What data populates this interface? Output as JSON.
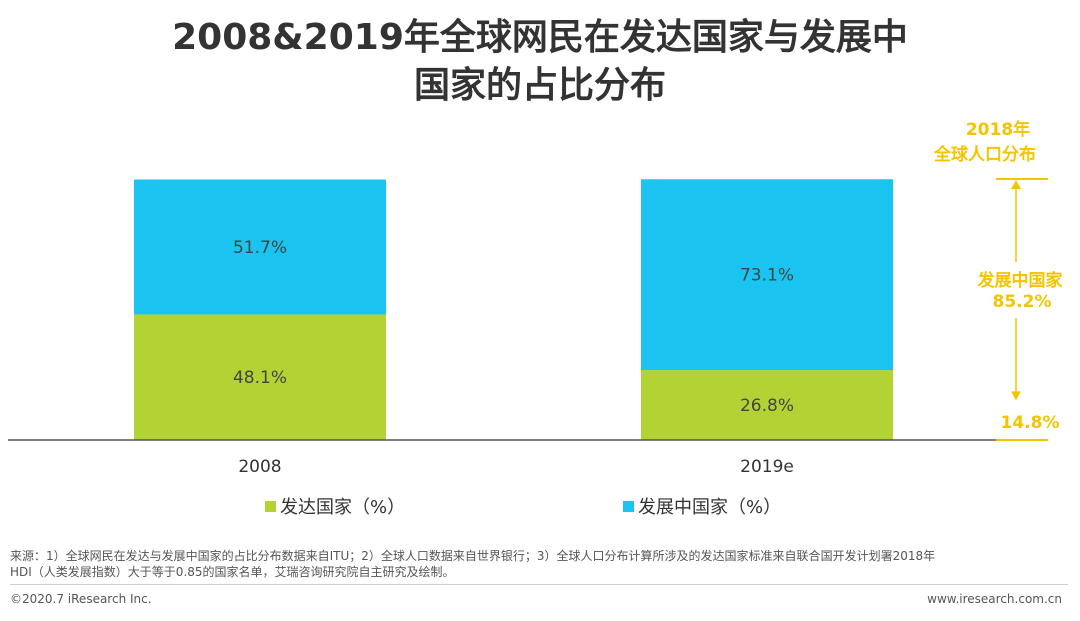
{
  "title_lines": [
    "2008&2019年全球网民在发达国家与发展中",
    "国家的占比分布"
  ],
  "chart_data": {
    "type": "bar",
    "stacked": true,
    "categories": [
      "2008",
      "2019e"
    ],
    "series": [
      {
        "name": "发达国家（%）",
        "color": "#b3d335",
        "values": [
          48.1,
          26.8
        ],
        "labels": [
          "48.1%",
          "26.8%"
        ]
      },
      {
        "name": "发展中国家（%）",
        "color": "#1bc4f0",
        "values": [
          51.7,
          73.1
        ],
        "labels": [
          "51.7%",
          "73.1%"
        ]
      }
    ],
    "ylim": [
      0,
      100
    ],
    "legend_position": "bottom",
    "annotation": {
      "title_line1": "2018年",
      "title_line2": "全球人口分布",
      "developing_label": "发展中国家",
      "developing_value": 85.2,
      "developing_value_label": "85.2%",
      "developed_value": 14.8,
      "developed_value_label": "14.8%",
      "color": "#f5c400"
    }
  },
  "footer": {
    "source_line1": "来源：1）全球网民在发达与发展中国家的占比分布数据来自ITU；2）全球人口数据来自世界银行；3）全球人口分布计算所涉及的发达国家标准来自联合国开发计划署2018年",
    "source_line2": "HDI（人类发展指数）大于等于0.85的国家名单，艾瑞咨询研究院自主研究及绘制。",
    "copyright": "©2020.7 iResearch Inc.",
    "website": "www.iresearch.com.cn"
  }
}
